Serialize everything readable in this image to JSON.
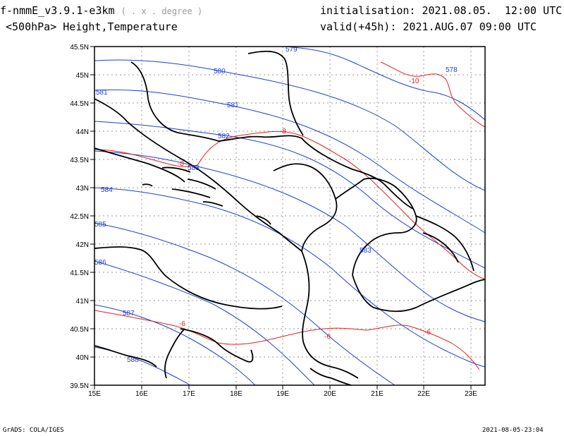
{
  "header": {
    "model": "f-nmmE_v3.9.1-e3km",
    "projection": "( . x . degree )",
    "level_field": "<500hPa> Height,Temperature",
    "init_label": "initialisation:",
    "init_value": "2021.08.05.  12:00 UTC",
    "valid_label": "valid(+45h):",
    "valid_value": "2021.AUG.07 09:00 UTC"
  },
  "footer": {
    "left": "GrADS: COLA/IGES",
    "right": "2021-08-05-23:04"
  },
  "map": {
    "lon_ticks": [
      "15E",
      "16E",
      "17E",
      "18E",
      "19E",
      "20E",
      "21E",
      "22E",
      "23E"
    ],
    "lat_ticks": [
      "39.5N",
      "40N",
      "40.5N",
      "41N",
      "41.5N",
      "42N",
      "42.5N",
      "43N",
      "43.5N",
      "44N",
      "44.5N",
      "45N",
      "45.5N"
    ],
    "lon_range": [
      15,
      23.3
    ],
    "lat_range": [
      39.5,
      45.5
    ],
    "grid": true,
    "colors": {
      "height": "#1f3fd8",
      "temperature": "#e8201a",
      "border": "#000000",
      "grid": "#9a9a9a"
    },
    "height_labels": [
      "579",
      "580",
      "581",
      "582",
      "583",
      "584",
      "585",
      "586",
      "587",
      "588",
      "578",
      "583"
    ],
    "temperature_labels": [
      "-10",
      "-8",
      "-8",
      "-6",
      "-6",
      "-6"
    ]
  }
}
